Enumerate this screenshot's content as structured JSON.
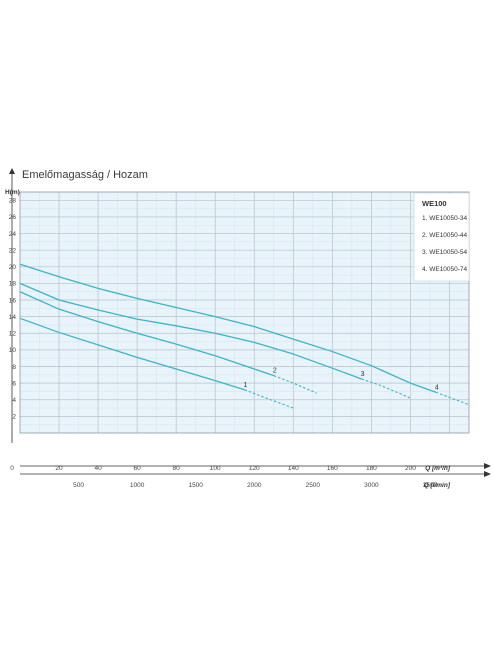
{
  "chart_data": {
    "type": "line",
    "title": "Emelőmagasság / Hozam",
    "ylabel": "H(m)",
    "xlabel": "Q [m³/h]",
    "xlabel2": "Q [l/min]",
    "ylim": [
      0,
      29
    ],
    "xlim": [
      0,
      230
    ],
    "y_ticks": [
      2,
      4,
      6,
      8,
      10,
      12,
      14,
      16,
      18,
      20,
      22,
      24,
      26,
      28
    ],
    "x_ticks": [
      0,
      20,
      40,
      60,
      80,
      100,
      120,
      140,
      160,
      180,
      200
    ],
    "x2_ticks": [
      500,
      1000,
      1500,
      2000,
      2500,
      3000,
      3500
    ],
    "grid": true,
    "legend": {
      "title": "WE100",
      "position": "top-right",
      "items": [
        "1. WE10050-34",
        "2. WE10050-44",
        "3. WE10050-54",
        "4. WE10050-74"
      ]
    },
    "series": [
      {
        "label": "1",
        "x": [
          0,
          20,
          40,
          60,
          80,
          100,
          115
        ],
        "y": [
          13.8,
          12.1,
          10.6,
          9.1,
          7.7,
          6.3,
          5.2
        ],
        "dashed_x": [
          115,
          125,
          140
        ],
        "dashed_y": [
          5.2,
          4.3,
          3.0
        ]
      },
      {
        "label": "2",
        "x": [
          0,
          20,
          40,
          60,
          80,
          100,
          120,
          130
        ],
        "y": [
          17.0,
          14.9,
          13.4,
          12.0,
          10.7,
          9.3,
          7.7,
          6.9
        ],
        "dashed_x": [
          130,
          140,
          152
        ],
        "dashed_y": [
          6.9,
          6.0,
          4.8
        ]
      },
      {
        "label": "3",
        "x": [
          0,
          20,
          40,
          60,
          80,
          100,
          120,
          140,
          160,
          175
        ],
        "y": [
          18.0,
          16.0,
          14.8,
          13.7,
          12.9,
          12.0,
          10.9,
          9.5,
          7.8,
          6.5
        ],
        "dashed_x": [
          175,
          185,
          200
        ],
        "dashed_y": [
          6.5,
          5.7,
          4.2
        ]
      },
      {
        "label": "4",
        "x": [
          0,
          20,
          40,
          60,
          80,
          100,
          120,
          140,
          160,
          180,
          200,
          213
        ],
        "y": [
          20.3,
          18.8,
          17.4,
          16.2,
          15.1,
          14.0,
          12.8,
          11.3,
          9.8,
          8.1,
          6.0,
          4.9
        ],
        "dashed_x": [
          213,
          230
        ],
        "dashed_y": [
          4.9,
          3.4
        ]
      }
    ],
    "curve_color": "#3ab6c4",
    "grid_color": "#b7c4cc",
    "plot_background": "#e8f4fa"
  }
}
